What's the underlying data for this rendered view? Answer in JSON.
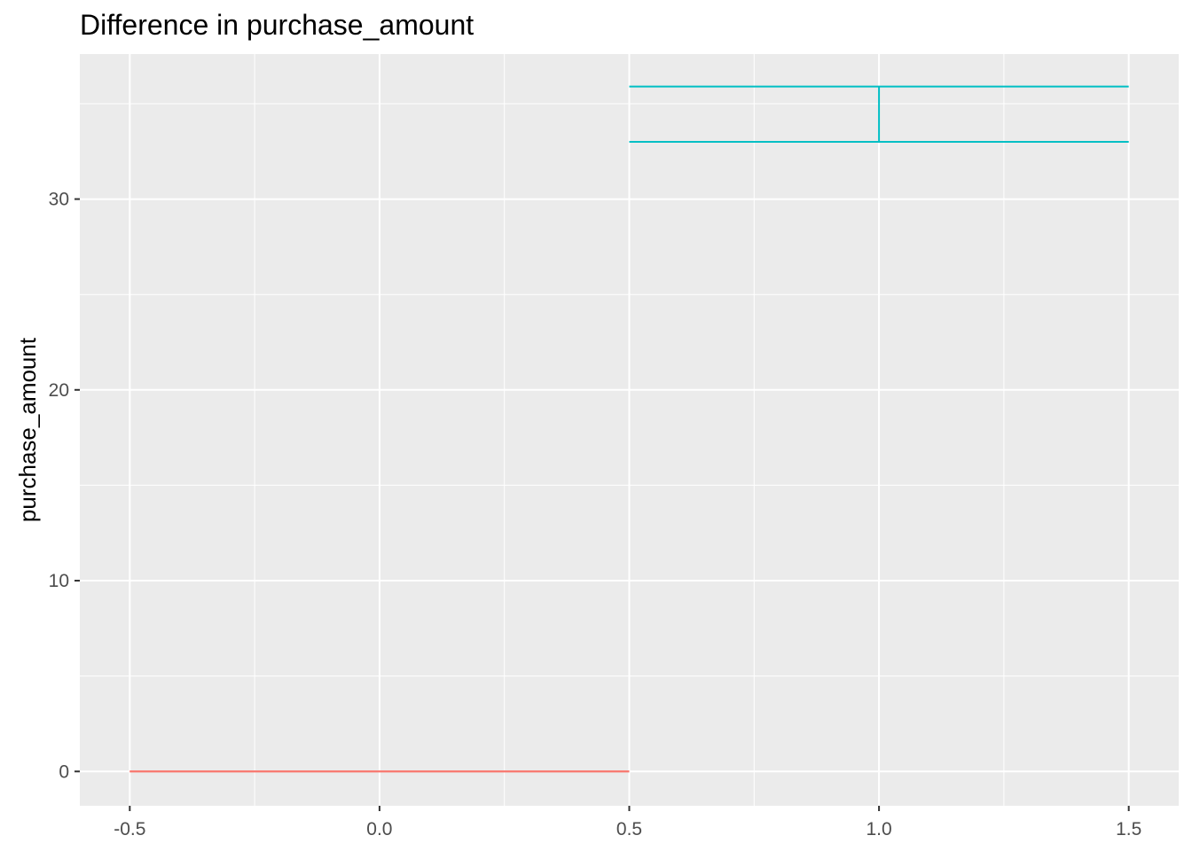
{
  "chart_data": {
    "type": "errorbar",
    "title": "Difference in purchase_amount",
    "xlabel": "",
    "ylabel": "purchase_amount",
    "xlim": [
      -0.6,
      1.6
    ],
    "ylim": [
      -1.8,
      37.6
    ],
    "x_ticks": [
      -0.5,
      0.0,
      0.5,
      1.0,
      1.5
    ],
    "x_tick_labels": [
      "-0.5",
      "0.0",
      "0.5",
      "1.0",
      "1.5"
    ],
    "y_ticks": [
      0,
      10,
      20,
      30
    ],
    "y_tick_labels": [
      "0",
      "10",
      "20",
      "30"
    ],
    "grid": true,
    "panel_background": "#ebebeb",
    "grid_color": "#ffffff",
    "legend": "none",
    "series": [
      {
        "x": 0.0,
        "xmin": -0.5,
        "xmax": 0.5,
        "ymin": 0,
        "ymax": 0,
        "color": "#F8766D"
      },
      {
        "x": 1.0,
        "xmin": 0.5,
        "xmax": 1.5,
        "ymin": 33.0,
        "ymax": 35.9,
        "color": "#00BFC4"
      }
    ]
  }
}
